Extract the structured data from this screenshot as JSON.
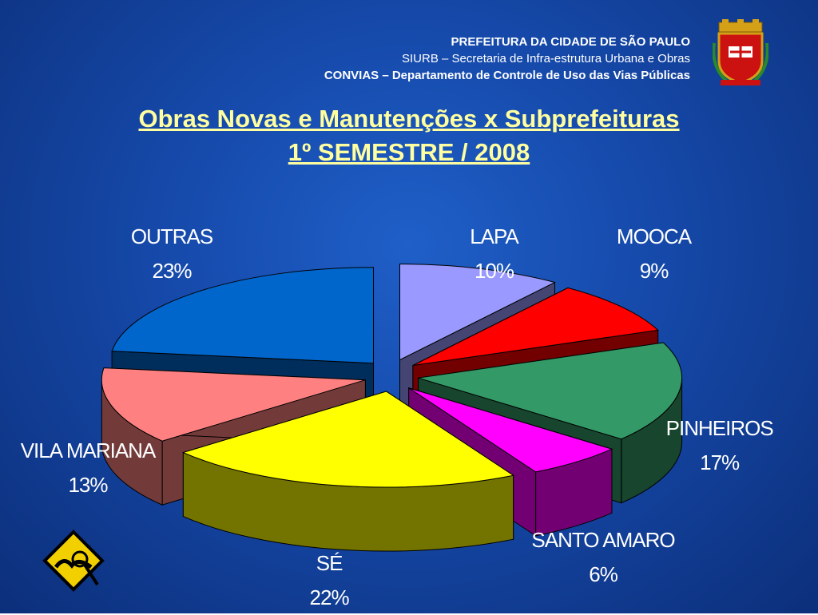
{
  "header": {
    "line1": "PREFEITURA DA CIDADE DE SÃO PAULO",
    "line2": "SIURB – Secretaria de Infra-estrutura Urbana e Obras",
    "line3": "CONVIAS – Departamento de Controle de Uso das Vias Públicas"
  },
  "title": "Obras Novas e Manutenções x Subprefeituras",
  "subtitle": "1º SEMESTRE / 2008",
  "chart_data": {
    "type": "pie",
    "title": "Obras Novas e Manutenções x Subprefeituras",
    "subtitle": "1º SEMESTRE / 2008",
    "slices": [
      {
        "name": "LAPA",
        "value": 10,
        "label": "10%",
        "color": "#9999ff"
      },
      {
        "name": "MOOCA",
        "value": 9,
        "label": "9%",
        "color": "#ff0000"
      },
      {
        "name": "PINHEIROS",
        "value": 17,
        "label": "17%",
        "color": "#339966"
      },
      {
        "name": "SANTO AMARO",
        "value": 6,
        "label": "6%",
        "color": "#ff00ff"
      },
      {
        "name": "SÉ",
        "value": 22,
        "label": "22%",
        "color": "#ffff00"
      },
      {
        "name": "VILA MARIANA",
        "value": 13,
        "label": "13%",
        "color": "#ff8080"
      },
      {
        "name": "OUTRAS",
        "value": 23,
        "label": "23%",
        "color": "#0066cc"
      }
    ],
    "exploded": true,
    "style": "3d"
  }
}
